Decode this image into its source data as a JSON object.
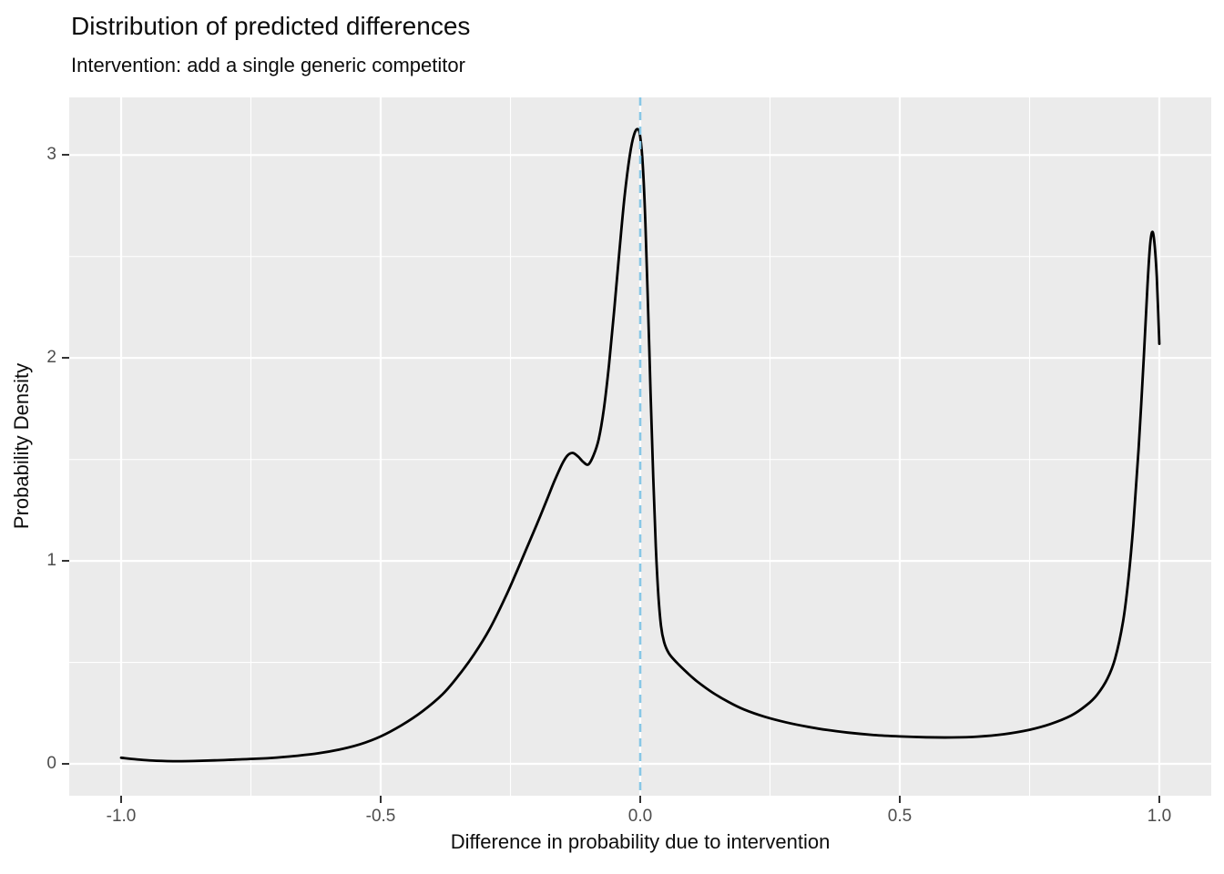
{
  "chart_data": {
    "type": "line",
    "subtype": "density",
    "title": "Distribution of predicted differences",
    "subtitle": "Intervention: add a single generic competitor",
    "xlabel": "Difference in probability due to intervention",
    "ylabel": "Probability Density",
    "xlim": [
      -1.1,
      1.1
    ],
    "ylim": [
      -0.157,
      3.284
    ],
    "grid": true,
    "legend": false,
    "x_ticks": {
      "values": [
        -1.0,
        -0.5,
        0.0,
        0.5,
        1.0
      ],
      "labels": [
        "-1.0",
        "-0.5",
        "0.0",
        "0.5",
        "1.0"
      ]
    },
    "y_ticks": {
      "values": [
        0,
        1,
        2,
        3
      ],
      "labels": [
        "0",
        "1",
        "2",
        "3"
      ]
    },
    "x_minor_gridlines": [
      -0.75,
      -0.25,
      0.25,
      0.75
    ],
    "y_minor_gridlines": [
      0.5,
      1.5,
      2.5
    ],
    "reference_line": {
      "orientation": "vertical",
      "x": 0.0,
      "style": "dashed",
      "color": "#87c7e6"
    },
    "colors": {
      "panel_background": "#ebebeb",
      "gridline": "#ffffff",
      "curve": "#000000",
      "vline": "#87c7e6",
      "tick_text": "#4d4d4d",
      "tick_mark": "#333333",
      "text": "#0d0d0d"
    },
    "series": [
      {
        "name": "predicted-difference-density",
        "color": "#000000",
        "points": [
          [
            -1.0,
            0.03
          ],
          [
            -0.97,
            0.022
          ],
          [
            -0.94,
            0.016
          ],
          [
            -0.9,
            0.013
          ],
          [
            -0.86,
            0.014
          ],
          [
            -0.82,
            0.017
          ],
          [
            -0.78,
            0.021
          ],
          [
            -0.74,
            0.025
          ],
          [
            -0.7,
            0.031
          ],
          [
            -0.66,
            0.04
          ],
          [
            -0.62,
            0.052
          ],
          [
            -0.58,
            0.07
          ],
          [
            -0.54,
            0.096
          ],
          [
            -0.5,
            0.135
          ],
          [
            -0.46,
            0.19
          ],
          [
            -0.42,
            0.258
          ],
          [
            -0.38,
            0.345
          ],
          [
            -0.35,
            0.435
          ],
          [
            -0.32,
            0.54
          ],
          [
            -0.29,
            0.665
          ],
          [
            -0.26,
            0.82
          ],
          [
            -0.24,
            0.935
          ],
          [
            -0.22,
            1.055
          ],
          [
            -0.2,
            1.175
          ],
          [
            -0.18,
            1.3
          ],
          [
            -0.165,
            1.395
          ],
          [
            -0.15,
            1.48
          ],
          [
            -0.14,
            1.52
          ],
          [
            -0.13,
            1.532
          ],
          [
            -0.12,
            1.515
          ],
          [
            -0.11,
            1.488
          ],
          [
            -0.1,
            1.475
          ],
          [
            -0.09,
            1.52
          ],
          [
            -0.08,
            1.6
          ],
          [
            -0.07,
            1.75
          ],
          [
            -0.06,
            1.97
          ],
          [
            -0.05,
            2.24
          ],
          [
            -0.04,
            2.53
          ],
          [
            -0.03,
            2.8
          ],
          [
            -0.02,
            3.0
          ],
          [
            -0.012,
            3.1
          ],
          [
            -0.005,
            3.128
          ],
          [
            0.0,
            3.09
          ],
          [
            0.005,
            2.95
          ],
          [
            0.01,
            2.66
          ],
          [
            0.015,
            2.26
          ],
          [
            0.02,
            1.82
          ],
          [
            0.025,
            1.41
          ],
          [
            0.03,
            1.07
          ],
          [
            0.035,
            0.83
          ],
          [
            0.04,
            0.68
          ],
          [
            0.046,
            0.6
          ],
          [
            0.055,
            0.545
          ],
          [
            0.07,
            0.5
          ],
          [
            0.09,
            0.45
          ],
          [
            0.11,
            0.405
          ],
          [
            0.14,
            0.35
          ],
          [
            0.17,
            0.305
          ],
          [
            0.2,
            0.268
          ],
          [
            0.24,
            0.232
          ],
          [
            0.28,
            0.205
          ],
          [
            0.32,
            0.184
          ],
          [
            0.36,
            0.167
          ],
          [
            0.4,
            0.154
          ],
          [
            0.45,
            0.142
          ],
          [
            0.5,
            0.135
          ],
          [
            0.55,
            0.131
          ],
          [
            0.6,
            0.13
          ],
          [
            0.65,
            0.134
          ],
          [
            0.7,
            0.146
          ],
          [
            0.75,
            0.168
          ],
          [
            0.79,
            0.196
          ],
          [
            0.83,
            0.238
          ],
          [
            0.86,
            0.29
          ],
          [
            0.88,
            0.34
          ],
          [
            0.9,
            0.42
          ],
          [
            0.915,
            0.52
          ],
          [
            0.93,
            0.7
          ],
          [
            0.94,
            0.9
          ],
          [
            0.95,
            1.18
          ],
          [
            0.96,
            1.55
          ],
          [
            0.97,
            2.0
          ],
          [
            0.977,
            2.35
          ],
          [
            0.982,
            2.55
          ],
          [
            0.986,
            2.62
          ],
          [
            0.99,
            2.58
          ],
          [
            0.995,
            2.4
          ],
          [
            1.0,
            2.07
          ]
        ]
      }
    ]
  }
}
